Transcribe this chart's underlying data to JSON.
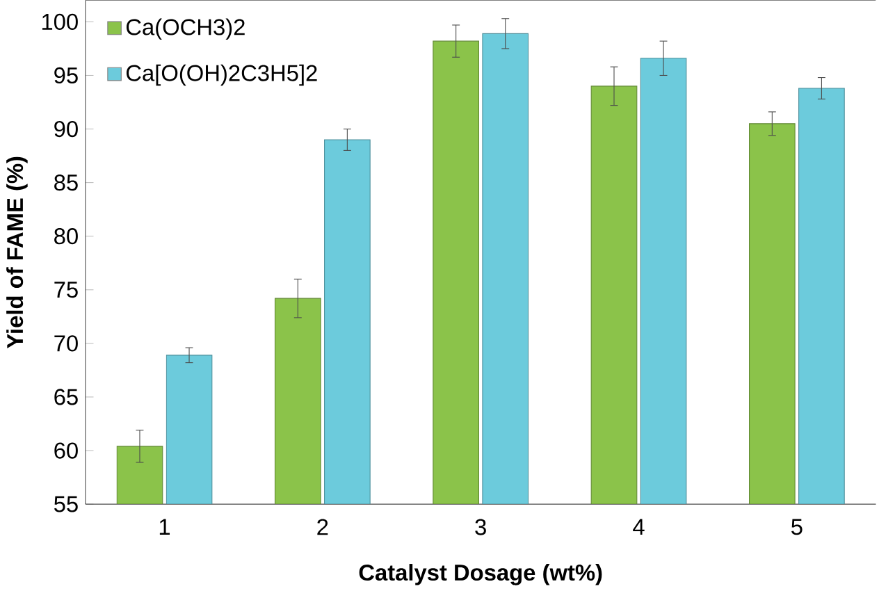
{
  "chart_data": {
    "type": "bar",
    "xlabel": "Catalyst Dosage (wt%)",
    "ylabel": "Yield of FAME (%)",
    "categories": [
      "1",
      "2",
      "3",
      "4",
      "5"
    ],
    "series": [
      {
        "name": "Ca(OCH3)2",
        "color": "#8bc34a",
        "values": [
          60.4,
          74.2,
          98.2,
          94.0,
          90.5
        ],
        "errors": [
          1.5,
          1.8,
          1.5,
          1.8,
          1.1
        ]
      },
      {
        "name": "Ca[O(OH)2C3H5]2",
        "color": "#6ccbdc",
        "values": [
          68.9,
          89.0,
          98.9,
          96.6,
          93.8
        ],
        "errors": [
          0.7,
          1.0,
          1.4,
          1.6,
          1.0
        ]
      }
    ],
    "ylim": [
      55,
      102
    ],
    "yticks": [
      55,
      60,
      65,
      70,
      75,
      80,
      85,
      90,
      95,
      100
    ],
    "grid": false,
    "legend": "top left"
  }
}
